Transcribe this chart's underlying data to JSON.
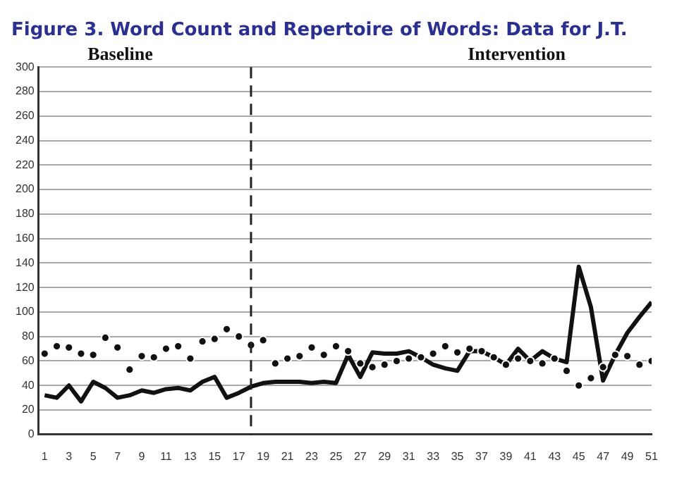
{
  "chart_data": {
    "type": "line",
    "title": "Figure 3. Word Count and Repertoire of Words: Data for J.T.",
    "annotations": [
      "Baseline",
      "Intervention"
    ],
    "x": [
      1,
      2,
      3,
      4,
      5,
      6,
      7,
      8,
      9,
      10,
      11,
      12,
      13,
      14,
      15,
      16,
      17,
      18,
      19,
      20,
      21,
      22,
      23,
      24,
      25,
      26,
      27,
      28,
      29,
      30,
      31,
      32,
      33,
      34,
      35,
      36,
      37,
      38,
      39,
      40,
      41,
      42,
      43,
      44,
      45,
      46,
      47,
      48,
      49,
      50,
      51
    ],
    "series": [
      {
        "type": "line",
        "color": "#111111",
        "marker": "none",
        "values": [
          32,
          30,
          40,
          27,
          43,
          38,
          30,
          32,
          36,
          34,
          37,
          38,
          36,
          43,
          47,
          30,
          34,
          39,
          42,
          43,
          43,
          43,
          42,
          43,
          42,
          65,
          47,
          67,
          66,
          66,
          68,
          63,
          57,
          54,
          52,
          68,
          68,
          63,
          57,
          70,
          60,
          68,
          62,
          59,
          137,
          104,
          44,
          65,
          83,
          96,
          108
        ]
      },
      {
        "type": "scatter",
        "color": "#111111",
        "marker": "circle",
        "values": [
          66,
          72,
          71,
          66,
          65,
          79,
          71,
          53,
          64,
          63,
          70,
          72,
          62,
          76,
          78,
          86,
          80,
          73,
          77,
          58,
          62,
          64,
          71,
          65,
          72,
          68,
          58,
          55,
          57,
          60,
          62,
          63,
          66,
          72,
          67,
          70,
          68,
          63,
          57,
          62,
          60,
          58,
          62,
          52,
          40,
          46,
          55,
          65,
          64,
          57,
          60
        ]
      }
    ],
    "xlim": [
      0.5,
      51
    ],
    "xticks": [
      1,
      3,
      5,
      7,
      9,
      11,
      13,
      15,
      17,
      19,
      21,
      23,
      25,
      27,
      29,
      31,
      33,
      35,
      37,
      39,
      41,
      43,
      45,
      47,
      49,
      51
    ],
    "ylim": [
      0,
      300
    ],
    "yticks": [
      0,
      20,
      40,
      60,
      80,
      100,
      120,
      140,
      160,
      180,
      200,
      220,
      240,
      260,
      280,
      300
    ],
    "grid": "y",
    "legend": false,
    "ref_lines": [
      {
        "axis": "x",
        "value": 18,
        "label": null,
        "color": "#222222",
        "line_style": "dashed"
      }
    ]
  }
}
